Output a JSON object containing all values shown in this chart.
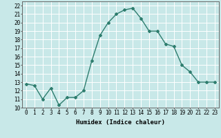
{
  "x": [
    0,
    1,
    2,
    3,
    4,
    5,
    6,
    7,
    8,
    9,
    10,
    11,
    12,
    13,
    14,
    15,
    16,
    17,
    18,
    19,
    20,
    21,
    22,
    23
  ],
  "y": [
    12.8,
    12.6,
    11.0,
    12.3,
    10.3,
    11.2,
    11.2,
    12.0,
    15.5,
    18.5,
    20.0,
    21.0,
    21.5,
    21.7,
    20.5,
    19.0,
    19.0,
    17.5,
    17.2,
    15.0,
    14.2,
    13.0,
    13.0,
    13.0
  ],
  "line_color": "#2e7d6e",
  "marker": "D",
  "marker_size": 2.0,
  "bg_color": "#c8e8e8",
  "grid_color": "#ffffff",
  "xlabel": "Humidex (Indice chaleur)",
  "xlim": [
    -0.5,
    23.5
  ],
  "ylim": [
    10,
    22.5
  ],
  "yticks": [
    10,
    11,
    12,
    13,
    14,
    15,
    16,
    17,
    18,
    19,
    20,
    21,
    22
  ],
  "xticks": [
    0,
    1,
    2,
    3,
    4,
    5,
    6,
    7,
    8,
    9,
    10,
    11,
    12,
    13,
    14,
    15,
    16,
    17,
    18,
    19,
    20,
    21,
    22,
    23
  ],
  "xlabel_fontsize": 6.5,
  "tick_fontsize": 5.5,
  "line_width": 1.0
}
